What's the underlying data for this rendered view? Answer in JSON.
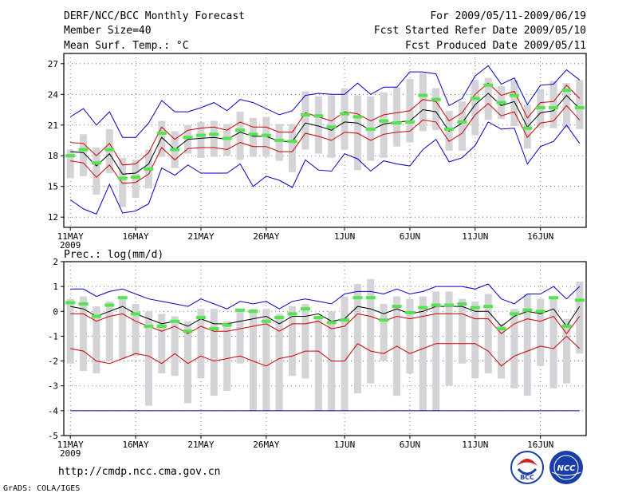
{
  "header": {
    "left_lines": [
      "DERF/NCC/BCC Monthly Forecast",
      "Member Size=40",
      "Mean Surf. Temp.: °C"
    ],
    "right_lines": [
      "For 2009/05/11-2009/06/19",
      "Fcst Started Refer Date 2009/05/10",
      "Fcst Produced Date 2009/05/11"
    ]
  },
  "footer": {
    "url": "http://cmdp.ncc.cma.gov.cn",
    "credit": "GrADS: COLA/IGES",
    "logo_bcc_text": "BCC",
    "logo_ncc_text": "NCC"
  },
  "colors": {
    "box": "#d3d3d8",
    "envelope": "#0000cc",
    "spread": "#cc0000",
    "mean": "#000000",
    "observed_marker": "#55e34f",
    "bottom_line": "#000080"
  },
  "chart_data": [
    {
      "type": "line",
      "title": "Mean Surf. Temp.: °C",
      "ylim": [
        11,
        28
      ],
      "yticks": [
        12,
        15,
        18,
        21,
        24,
        27
      ],
      "xlim": [
        0.5,
        40.5
      ],
      "xticks": [
        {
          "day": 1,
          "label": "11MAY"
        },
        {
          "day": 6,
          "label": "16MAY"
        },
        {
          "day": 11,
          "label": "21MAY"
        },
        {
          "day": 16,
          "label": "26MAY"
        },
        {
          "day": 22,
          "label": "1JUN"
        },
        {
          "day": 27,
          "label": "6JUN"
        },
        {
          "day": 32,
          "label": "11JUN"
        },
        {
          "day": 37,
          "label": "16JUN"
        }
      ],
      "year_label": "2009",
      "series": {
        "mean": [
          18.4,
          18.3,
          17.0,
          18.2,
          16.2,
          16.3,
          17.2,
          19.8,
          18.6,
          19.6,
          19.7,
          19.8,
          19.6,
          20.3,
          19.9,
          19.9,
          19.4,
          19.4,
          21.2,
          20.9,
          20.5,
          21.3,
          21.2,
          20.5,
          21.1,
          21.3,
          21.4,
          22.5,
          22.3,
          20.4,
          21.2,
          23.0,
          24.1,
          22.9,
          23.3,
          20.8,
          22.2,
          22.4,
          23.9,
          22.6
        ],
        "upper_red": [
          19.3,
          19.2,
          18.0,
          19.2,
          17.1,
          17.2,
          18.3,
          20.8,
          19.6,
          20.5,
          20.7,
          20.8,
          20.5,
          21.3,
          20.8,
          20.8,
          20.3,
          20.3,
          22.2,
          21.8,
          21.4,
          22.3,
          22.1,
          21.4,
          22.0,
          22.2,
          22.4,
          23.5,
          23.3,
          21.4,
          22.2,
          24.0,
          25.1,
          23.9,
          24.3,
          21.7,
          23.2,
          23.3,
          24.9,
          23.6
        ],
        "lower_red": [
          17.5,
          17.3,
          15.9,
          17.1,
          15.3,
          15.4,
          16.2,
          18.8,
          17.6,
          18.7,
          18.8,
          18.8,
          18.6,
          19.3,
          18.9,
          18.9,
          18.4,
          18.4,
          20.2,
          19.9,
          19.5,
          20.3,
          20.2,
          19.5,
          20.1,
          20.3,
          20.4,
          21.5,
          21.3,
          19.4,
          20.2,
          22.0,
          23.1,
          21.9,
          22.3,
          19.8,
          21.2,
          21.4,
          22.9,
          21.5
        ],
        "max_blue": [
          21.8,
          22.6,
          21.0,
          22.3,
          19.8,
          19.8,
          21.2,
          23.4,
          22.3,
          22.3,
          22.7,
          23.2,
          22.4,
          23.5,
          23.2,
          22.6,
          22.0,
          22.4,
          23.9,
          24.1,
          24.0,
          24.0,
          25.1,
          24.0,
          24.7,
          24.7,
          26.2,
          26.2,
          26.0,
          22.9,
          23.6,
          25.8,
          26.8,
          25.0,
          25.6,
          23.0,
          24.9,
          25.0,
          26.4,
          25.4
        ],
        "min_blue": [
          13.7,
          12.8,
          12.3,
          15.2,
          12.4,
          12.6,
          13.3,
          16.8,
          16.1,
          17.1,
          16.3,
          16.3,
          16.3,
          17.2,
          15.0,
          16.0,
          15.6,
          14.9,
          17.6,
          16.6,
          16.5,
          18.2,
          17.7,
          16.5,
          17.5,
          17.2,
          17.0,
          18.6,
          19.6,
          17.4,
          17.8,
          19.0,
          21.3,
          20.6,
          20.7,
          17.2,
          18.9,
          19.4,
          21.0,
          19.2
        ],
        "box_top": [
          18.6,
          20.1,
          18.8,
          20.6,
          17.8,
          17.6,
          18.6,
          21.4,
          20.4,
          21.0,
          21.3,
          21.4,
          21.1,
          22.3,
          21.7,
          21.8,
          21.1,
          21.1,
          24.3,
          23.8,
          23.9,
          24.6,
          23.9,
          23.8,
          24.2,
          24.7,
          25.5,
          26.1,
          24.6,
          22.4,
          23.3,
          25.4,
          25.6,
          24.8,
          25.4,
          23.0,
          24.5,
          25.3,
          25.1,
          25.4
        ],
        "box_bottom": [
          15.8,
          16.0,
          14.2,
          16.3,
          13.0,
          13.9,
          14.8,
          17.9,
          16.8,
          18.2,
          17.8,
          17.9,
          18.0,
          17.6,
          17.9,
          17.9,
          17.5,
          16.4,
          18.6,
          18.2,
          17.8,
          18.6,
          16.6,
          17.5,
          17.8,
          18.9,
          19.3,
          20.4,
          20.5,
          18.5,
          18.5,
          20.0,
          21.5,
          21.6,
          20.9,
          18.7,
          20.7,
          20.7,
          20.7,
          20.6
        ],
        "observed": [
          18.0,
          18.6,
          17.3,
          18.6,
          15.8,
          15.9,
          16.7,
          20.2,
          18.6,
          19.8,
          20.0,
          20.1,
          19.7,
          20.5,
          20.1,
          20.0,
          19.5,
          19.4,
          22.0,
          21.9,
          20.8,
          22.1,
          21.8,
          20.6,
          21.4,
          21.2,
          21.3,
          23.9,
          23.5,
          20.6,
          21.3,
          23.6,
          24.9,
          23.2,
          23.9,
          20.7,
          22.7,
          22.7,
          24.4,
          22.7
        ]
      }
    },
    {
      "type": "line",
      "title": "Prec.: log(mm/d)",
      "ylim": [
        -5,
        2
      ],
      "yticks": [
        -5,
        -4,
        -3,
        -2,
        -1,
        0,
        1,
        2
      ],
      "xlim": [
        0.5,
        40.5
      ],
      "xticks": [
        {
          "day": 1,
          "label": "11MAY"
        },
        {
          "day": 6,
          "label": "16MAY"
        },
        {
          "day": 11,
          "label": "21MAY"
        },
        {
          "day": 16,
          "label": "26MAY"
        },
        {
          "day": 22,
          "label": "1JUN"
        },
        {
          "day": 27,
          "label": "6JUN"
        },
        {
          "day": 32,
          "label": "11JUN"
        },
        {
          "day": 37,
          "label": "16JUN"
        }
      ],
      "year_label": "2009",
      "series": {
        "mean": [
          0.2,
          0.1,
          -0.2,
          0.0,
          0.2,
          -0.1,
          -0.3,
          -0.5,
          -0.4,
          -0.6,
          -0.3,
          -0.5,
          -0.5,
          -0.4,
          -0.3,
          -0.2,
          -0.5,
          -0.2,
          -0.2,
          -0.1,
          -0.4,
          -0.3,
          0.2,
          0.1,
          -0.1,
          0.1,
          -0.1,
          0.0,
          0.2,
          0.2,
          0.2,
          0.0,
          0.0,
          -0.6,
          -0.2,
          0.0,
          -0.1,
          0.1,
          -0.6,
          0.2
        ],
        "upper_red": [
          -0.1,
          -0.1,
          -0.4,
          -0.2,
          -0.1,
          -0.4,
          -0.6,
          -0.8,
          -0.6,
          -0.9,
          -0.6,
          -0.8,
          -0.8,
          -0.7,
          -0.6,
          -0.5,
          -0.8,
          -0.5,
          -0.5,
          -0.4,
          -0.7,
          -0.6,
          -0.1,
          -0.2,
          -0.4,
          -0.2,
          -0.3,
          -0.2,
          -0.1,
          -0.1,
          -0.1,
          -0.3,
          -0.3,
          -0.9,
          -0.5,
          -0.3,
          -0.4,
          -0.2,
          -0.9,
          -0.2
        ],
        "lower_red": [
          -1.5,
          -1.6,
          -2.0,
          -2.1,
          -1.9,
          -1.7,
          -1.8,
          -2.1,
          -1.7,
          -2.1,
          -1.8,
          -2.0,
          -1.9,
          -1.8,
          -2.0,
          -2.2,
          -1.9,
          -1.8,
          -1.6,
          -1.6,
          -2.0,
          -2.0,
          -1.3,
          -1.6,
          -1.7,
          -1.4,
          -1.7,
          -1.5,
          -1.3,
          -1.3,
          -1.3,
          -1.3,
          -1.6,
          -2.2,
          -1.8,
          -1.6,
          -1.4,
          -1.5,
          -1.0,
          -1.5
        ],
        "max_blue": [
          0.9,
          0.9,
          0.6,
          0.8,
          0.9,
          0.7,
          0.5,
          0.4,
          0.3,
          0.2,
          0.5,
          0.3,
          0.1,
          0.4,
          0.3,
          0.4,
          0.1,
          0.4,
          0.5,
          0.4,
          0.3,
          0.7,
          0.8,
          0.8,
          0.7,
          0.9,
          0.7,
          0.8,
          1.0,
          1.0,
          1.0,
          0.9,
          1.1,
          0.5,
          0.3,
          0.7,
          0.7,
          1.0,
          0.5,
          1.0
        ],
        "min_blue": [
          -4.0,
          -4.0,
          -4.0,
          -4.0,
          -4.0,
          -4.0,
          -4.0,
          -4.0,
          -4.0,
          -4.0,
          -4.0,
          -4.0,
          -4.0,
          -4.0,
          -4.0,
          -4.0,
          -4.0,
          -4.0,
          -4.0,
          -4.0,
          -4.0,
          -4.0,
          -4.0,
          -4.0,
          -4.0,
          -4.0,
          -4.0,
          -4.0,
          -4.0,
          -4.0,
          -4.0,
          -4.0,
          -4.0,
          -4.0,
          -4.0,
          -4.0,
          -4.0,
          -4.0,
          -4.0,
          -4.0
        ],
        "box_top": [
          0.5,
          0.6,
          0.2,
          0.4,
          0.6,
          0.3,
          0.0,
          -0.1,
          -0.2,
          -0.4,
          0.1,
          0.1,
          -0.4,
          0.0,
          0.1,
          0.1,
          -0.1,
          0.2,
          0.3,
          -0.2,
          0.0,
          0.6,
          1.1,
          1.3,
          0.3,
          0.6,
          0.5,
          0.6,
          0.8,
          0.8,
          0.5,
          0.4,
          0.7,
          -0.5,
          0.1,
          0.7,
          0.5,
          0.6,
          -0.3,
          1.2
        ],
        "box_bottom": [
          -2.1,
          -2.4,
          -2.5,
          -2.0,
          -1.9,
          -1.8,
          -3.8,
          -2.5,
          -2.6,
          -3.7,
          -2.7,
          -3.4,
          -3.2,
          -2.1,
          -4.0,
          -4.0,
          -4.0,
          -2.6,
          -2.7,
          -4.0,
          -4.0,
          -4.0,
          -3.3,
          -2.9,
          -2.0,
          -3.4,
          -2.5,
          -4.0,
          -4.0,
          -3.0,
          -2.1,
          -2.7,
          -2.5,
          -2.7,
          -3.1,
          -3.4,
          -2.2,
          -3.1,
          -2.9,
          -1.7
        ],
        "observed": [
          0.35,
          0.3,
          -0.2,
          0.25,
          0.55,
          -0.1,
          -0.6,
          -0.6,
          -0.4,
          -0.8,
          -0.25,
          -0.7,
          -0.55,
          0.05,
          0.0,
          -0.4,
          -0.25,
          -0.1,
          0.1,
          -0.25,
          -0.45,
          -0.35,
          0.55,
          0.55,
          -0.35,
          0.2,
          -0.05,
          0.15,
          0.25,
          0.25,
          0.3,
          0.15,
          0.2,
          -0.7,
          -0.1,
          0.05,
          0.0,
          0.55,
          -0.6,
          0.45
        ]
      }
    }
  ]
}
